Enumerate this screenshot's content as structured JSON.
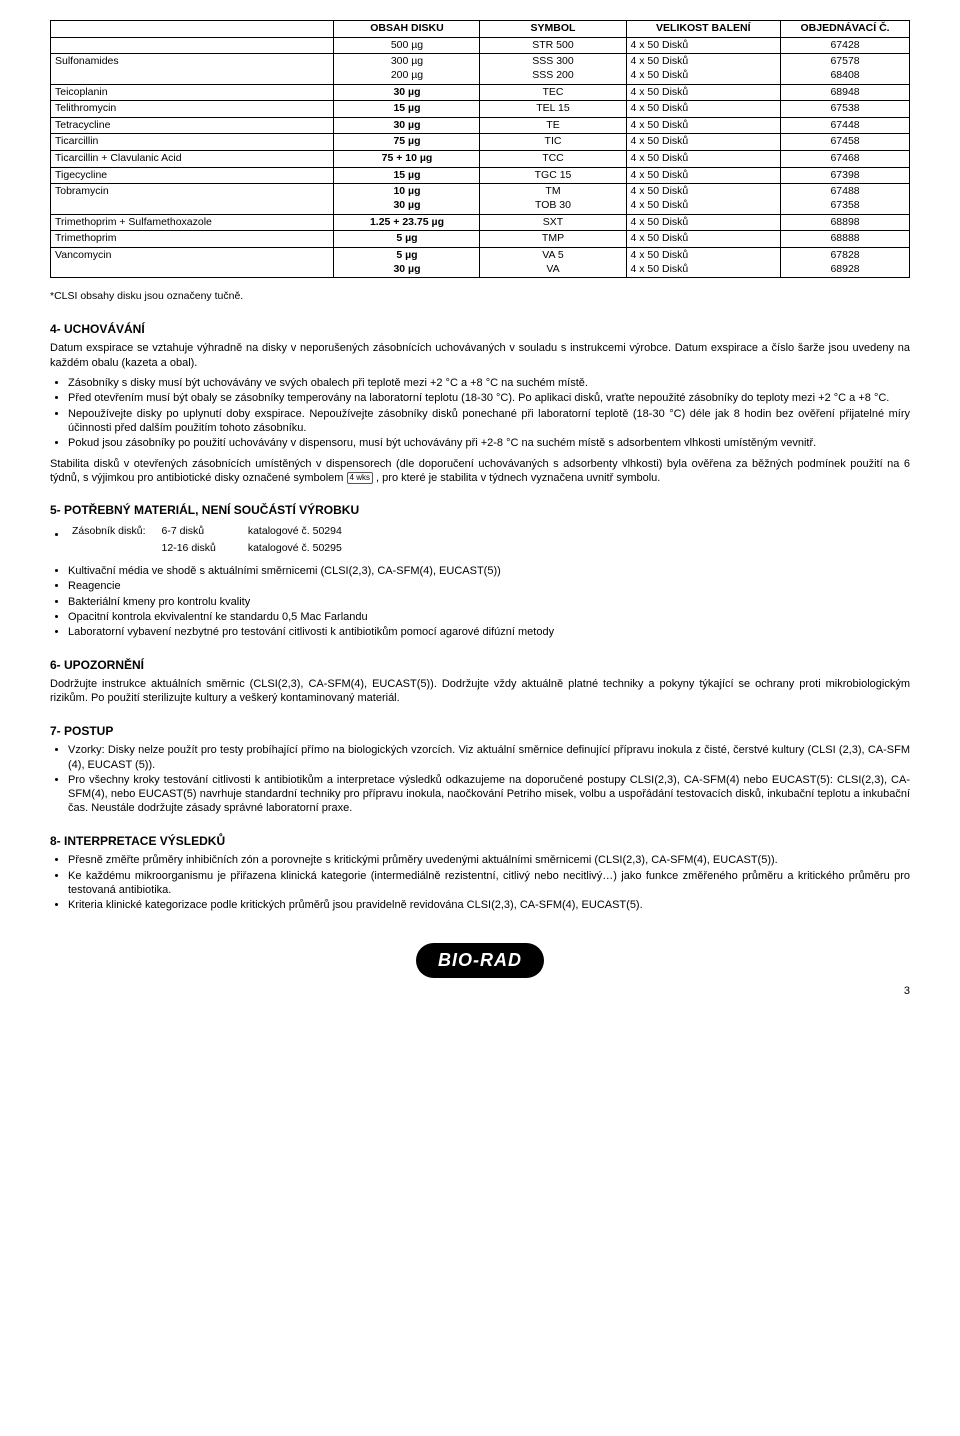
{
  "table": {
    "headers": [
      "OBSAH DISKU",
      "SYMBOL",
      "VELIKOST BALENÍ",
      "OBJEDNÁVACÍ Č."
    ],
    "rows": [
      {
        "name": "",
        "dose": [
          "500 µg"
        ],
        "sym": [
          "STR 500"
        ],
        "pack": [
          "4 x 50 Disků"
        ],
        "code": [
          "67428"
        ],
        "bold": false
      },
      {
        "name": "Sulfonamides",
        "dose": [
          "300 µg",
          "200 µg"
        ],
        "sym": [
          "SSS 300",
          "SSS 200"
        ],
        "pack": [
          "4 x 50 Disků",
          "4 x 50 Disků"
        ],
        "code": [
          "67578",
          "68408"
        ],
        "bold": false
      },
      {
        "name": "Teicoplanin",
        "dose": [
          "30 µg"
        ],
        "sym": [
          "TEC"
        ],
        "pack": [
          "4 x 50 Disků"
        ],
        "code": [
          "68948"
        ],
        "bold": true
      },
      {
        "name": "Telithromycin",
        "dose": [
          "15 µg"
        ],
        "sym": [
          "TEL 15"
        ],
        "pack": [
          "4 x 50 Disků"
        ],
        "code": [
          "67538"
        ],
        "bold": true
      },
      {
        "name": "Tetracycline",
        "dose": [
          "30 µg"
        ],
        "sym": [
          "TE"
        ],
        "pack": [
          "4 x 50 Disků"
        ],
        "code": [
          "67448"
        ],
        "bold": true
      },
      {
        "name": "Ticarcillin",
        "dose": [
          "75 µg"
        ],
        "sym": [
          "TIC"
        ],
        "pack": [
          "4 x 50 Disků"
        ],
        "code": [
          "67458"
        ],
        "bold": true
      },
      {
        "name": "Ticarcillin + Clavulanic Acid",
        "dose": [
          "75 + 10 µg"
        ],
        "sym": [
          "TCC"
        ],
        "pack": [
          "4 x 50 Disků"
        ],
        "code": [
          "67468"
        ],
        "bold": true
      },
      {
        "name": "Tigecycline",
        "dose": [
          "15 µg"
        ],
        "sym": [
          "TGC 15"
        ],
        "pack": [
          "4 x 50 Disků"
        ],
        "code": [
          "67398"
        ],
        "bold": true
      },
      {
        "name": "Tobramycin",
        "dose": [
          "10 µg",
          "30 µg"
        ],
        "sym": [
          "TM",
          "TOB 30"
        ],
        "pack": [
          "4 x 50 Disků",
          "4 x 50 Disků"
        ],
        "code": [
          "67488",
          "67358"
        ],
        "bold": true
      },
      {
        "name": "Trimethoprim + Sulfamethoxazole",
        "dose": [
          "1.25 + 23.75 µg"
        ],
        "sym": [
          "SXT"
        ],
        "pack": [
          "4 x 50 Disků"
        ],
        "code": [
          "68898"
        ],
        "bold": true
      },
      {
        "name": "Trimethoprim",
        "dose": [
          "5 µg"
        ],
        "sym": [
          "TMP"
        ],
        "pack": [
          "4 x 50 Disků"
        ],
        "code": [
          "68888"
        ],
        "bold": true
      },
      {
        "name": "Vancomycin",
        "dose": [
          "5 µg",
          "30 µg"
        ],
        "sym": [
          "VA 5",
          "VA"
        ],
        "pack": [
          "4 x 50 Disků",
          "4 x 50 Disků"
        ],
        "code": [
          "67828",
          "68928"
        ],
        "bold": true
      }
    ]
  },
  "footnote": "*CLSI obsahy disku jsou označeny tučně.",
  "s4": {
    "title": "4-  UCHOVÁVÁNÍ",
    "p1": "Datum exspirace se vztahuje výhradně na disky v neporušených zásobnících uchovávaných v souladu s instrukcemi výrobce. Datum exspirace a číslo šarže jsou uvedeny na každém obalu (kazeta a obal).",
    "bullets": [
      "Zásobníky s disky musí být uchovávány ve svých obalech při teplotě mezi +2 °C a +8 °C na suchém místě.",
      "Před otevřením musí být obaly se zásobníky temperovány na laboratorní teplotu (18-30 °C). Po aplikaci disků, vraťte nepoužité zásobníky do teploty mezi +2 °C a +8 °C.",
      "Nepoužívejte disky po uplynutí doby exspirace. Nepoužívejte zásobníky disků ponechané při laboratorní teplotě (18-30 °C) déle jak 8 hodin bez ověření přijatelné míry účinnosti před dalším použitím tohoto zásobníku.",
      "Pokud jsou zásobníky po použití uchovávány v dispensoru, musí být uchovávány při +2-8 °C na suchém místě s adsorbentem vlhkosti umístěným vevnitř."
    ],
    "p2a": "Stabilita disků v otevřených zásobnících umístěných v dispensorech (dle doporučení uchovávaných s adsorbenty vlhkosti) byla ověřena za běžných podmínek použití na 6 týdnů, s výjimkou pro antibiotické disky označené symbolem ",
    "p2b": " , pro které je stabilita v týdnech vyznačena uvnitř symbolu."
  },
  "s5": {
    "title": "5-  POTŘEBNÝ MATERIÁL, NENÍ SOUČÁSTÍ VÝROBKU",
    "mat1a": "Zásobník disků:",
    "mat1b": "6-7 disků",
    "mat1c": "katalogové č. 50294",
    "mat2b": "12-16 disků",
    "mat2c": "katalogové č. 50295",
    "bullets": [
      "Kultivační média ve shodě s aktuálními směrnicemi (CLSI(2,3), CA-SFM(4), EUCAST(5))",
      "Reagencie",
      "Bakteriální kmeny pro kontrolu kvality",
      "Opacitní kontrola ekvivalentní ke standardu 0,5 Mac Farlandu",
      "Laboratorní vybavení nezbytné pro testování citlivosti k antibiotikům pomocí agarové difúzní metody"
    ]
  },
  "s6": {
    "title": "6-  UPOZORNĚNÍ",
    "p1": "Dodržujte instrukce aktuálních směrnic (CLSI(2,3), CA-SFM(4), EUCAST(5)). Dodržujte vždy aktuálně platné techniky a pokyny týkající se ochrany proti mikrobiologickým rizikům. Po použití sterilizujte kultury a veškerý kontaminovaný materiál."
  },
  "s7": {
    "title": "7-  POSTUP",
    "bullets": [
      "Vzorky: Disky nelze použít pro testy probíhající přímo na biologických vzorcích. Viz aktuální směrnice definující přípravu inokula z čisté, čerstvé kultury (CLSI (2,3), CA-SFM (4), EUCAST (5)).",
      "Pro všechny kroky testování citlivosti k antibiotikům a interpretace výsledků odkazujeme na doporučené postupy CLSI(2,3), CA-SFM(4) nebo EUCAST(5): CLSI(2,3), CA-SFM(4), nebo EUCAST(5) navrhuje standardní techniky pro přípravu inokula, naočkování Petriho misek, volbu a uspořádání testovacích disků, inkubační teplotu a inkubační čas. Neustále dodržujte zásady správné laboratorní praxe."
    ]
  },
  "s8": {
    "title": "8-  INTERPRETACE VÝSLEDKŮ",
    "bullets": [
      "Přesně změřte průměry inhibičních zón a porovnejte s kritickými průměry uvedenými aktuálními směrnicemi (CLSI(2,3), CA-SFM(4), EUCAST(5)).",
      "Ke každému mikroorganismu je přiřazena klinická kategorie (intermediálně rezistentní, citlivý nebo necitlivý…) jako funkce změřeného průměru a kritického průměru pro testovaná antibiotika.",
      "Kriteria klinické kategorizace podle kritických průměrů jsou pravidelně revidována CLSI(2,3), CA-SFM(4), EUCAST(5)."
    ]
  },
  "logo": "BIO-RAD",
  "pagenum": "3"
}
